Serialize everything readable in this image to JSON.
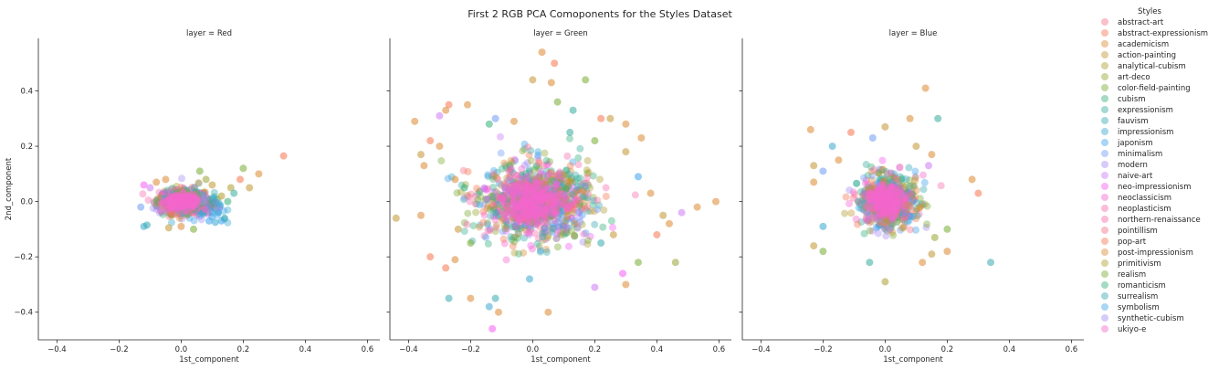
{
  "chart_data": {
    "type": "scatter",
    "title": "First 2 RGB PCA Comoponents for the Styles Dataset",
    "xlabel": "1st_component",
    "ylabel": "2nd_component",
    "xlim": [
      -0.46,
      0.64
    ],
    "ylim": [
      -0.5,
      0.59
    ],
    "x_ticks": [
      "−0.4",
      "−0.2",
      "0.0",
      "0.2",
      "0.4",
      "0.6"
    ],
    "y_ticks": [
      "−0.4",
      "−0.2",
      "0.0",
      "0.2",
      "0.4"
    ],
    "grid": false,
    "legend_title": "Styles",
    "legend_position": "right",
    "marker_opacity": 0.4,
    "categories": [
      {
        "name": "abstract-art",
        "color": "#f77189"
      },
      {
        "name": "abstract-expressionism",
        "color": "#f7754f"
      },
      {
        "name": "academicism",
        "color": "#dc8932"
      },
      {
        "name": "action-painting",
        "color": "#c39532"
      },
      {
        "name": "analytical-cubism",
        "color": "#ae9d31"
      },
      {
        "name": "art-deco",
        "color": "#97a431"
      },
      {
        "name": "color-field-painting",
        "color": "#77ab31"
      },
      {
        "name": "cubism",
        "color": "#33b07a"
      },
      {
        "name": "expressionism",
        "color": "#35ac9c"
      },
      {
        "name": "fauvism",
        "color": "#36a9b0"
      },
      {
        "name": "impressionism",
        "color": "#38a7d0"
      },
      {
        "name": "japonism",
        "color": "#3ba3ec"
      },
      {
        "name": "minimalism",
        "color": "#6e9bf4"
      },
      {
        "name": "modern",
        "color": "#a48cf4"
      },
      {
        "name": "naive-art",
        "color": "#cc7af4"
      },
      {
        "name": "neo-impressionism",
        "color": "#f45cf2"
      },
      {
        "name": "neoclassicism",
        "color": "#f565cc"
      },
      {
        "name": "neoplasticism",
        "color": "#f66bad"
      },
      {
        "name": "northern-renaissance",
        "color": "#f66bad"
      },
      {
        "name": "pointillism",
        "color": "#f77189"
      },
      {
        "name": "pop-art",
        "color": "#f7754f"
      },
      {
        "name": "post-impressionism",
        "color": "#dc8932"
      },
      {
        "name": "primitivism",
        "color": "#ae9d31"
      },
      {
        "name": "realism",
        "color": "#77ab31"
      },
      {
        "name": "romanticism",
        "color": "#33b07a"
      },
      {
        "name": "surrealism",
        "color": "#36a9b0"
      },
      {
        "name": "symbolism",
        "color": "#3ba3ec"
      },
      {
        "name": "synthetic-cubism",
        "color": "#a48cf4"
      },
      {
        "name": "ukiyo-e",
        "color": "#f565cc"
      }
    ],
    "panels": [
      {
        "title": "layer = Red",
        "core_spread": [
          0.04,
          0.022
        ],
        "points": [
          {
            "x": 0.33,
            "y": 0.165,
            "c": 1
          },
          {
            "x": 0.25,
            "y": 0.1,
            "c": 2
          },
          {
            "x": 0.2,
            "y": 0.12,
            "c": 6
          },
          {
            "x": 0.22,
            "y": 0.05,
            "c": 3
          },
          {
            "x": 0.19,
            "y": 0.08,
            "c": 1
          },
          {
            "x": 0.16,
            "y": 0.05,
            "c": 4
          },
          {
            "x": 0.12,
            "y": -0.04,
            "c": 10
          },
          {
            "x": 0.13,
            "y": -0.07,
            "c": 11
          },
          {
            "x": 0.14,
            "y": -0.06,
            "c": 9
          },
          {
            "x": 0.1,
            "y": -0.055,
            "c": 11
          },
          {
            "x": 0.11,
            "y": -0.075,
            "c": 10
          },
          {
            "x": 0.09,
            "y": -0.07,
            "c": 11
          },
          {
            "x": -0.12,
            "y": -0.09,
            "c": 10
          },
          {
            "x": -0.11,
            "y": -0.085,
            "c": 9
          },
          {
            "x": -0.13,
            "y": -0.02,
            "c": 12
          },
          {
            "x": -0.12,
            "y": 0.06,
            "c": 15
          },
          {
            "x": -0.1,
            "y": 0.05,
            "c": 14
          },
          {
            "x": 0.06,
            "y": 0.11,
            "c": 6
          },
          {
            "x": -0.05,
            "y": 0.08,
            "c": 2
          },
          {
            "x": 0.04,
            "y": -0.1,
            "c": 6
          },
          {
            "x": 0.0,
            "y": -0.09,
            "c": 2
          },
          {
            "x": -0.04,
            "y": -0.095,
            "c": 3
          },
          {
            "x": 0.08,
            "y": 0.08,
            "c": 5
          },
          {
            "x": 0.15,
            "y": 0.0,
            "c": 7
          },
          {
            "x": 0.13,
            "y": 0.02,
            "c": 4
          },
          {
            "x": -0.08,
            "y": 0.07,
            "c": 2
          },
          {
            "x": 0.17,
            "y": 0.03,
            "c": 8
          },
          {
            "x": 0.1,
            "y": 0.06,
            "c": 3
          }
        ]
      },
      {
        "title": "layer = Green",
        "core_spread": [
          0.09,
          0.07
        ],
        "points": [
          {
            "x": 0.03,
            "y": 0.54,
            "c": 2
          },
          {
            "x": 0.07,
            "y": 0.5,
            "c": 1
          },
          {
            "x": 0.17,
            "y": 0.44,
            "c": 6
          },
          {
            "x": 0.0,
            "y": 0.44,
            "c": 3
          },
          {
            "x": 0.06,
            "y": 0.43,
            "c": 2
          },
          {
            "x": -0.21,
            "y": 0.35,
            "c": 2
          },
          {
            "x": -0.27,
            "y": 0.35,
            "c": 1
          },
          {
            "x": -0.28,
            "y": 0.33,
            "c": 2
          },
          {
            "x": -0.3,
            "y": 0.31,
            "c": 14
          },
          {
            "x": -0.38,
            "y": 0.29,
            "c": 2
          },
          {
            "x": -0.06,
            "y": 0.29,
            "c": 2
          },
          {
            "x": -0.14,
            "y": 0.28,
            "c": 7
          },
          {
            "x": -0.12,
            "y": 0.3,
            "c": 12
          },
          {
            "x": 0.3,
            "y": 0.28,
            "c": 2
          },
          {
            "x": 0.22,
            "y": 0.3,
            "c": 1
          },
          {
            "x": 0.25,
            "y": 0.3,
            "c": 3
          },
          {
            "x": 0.35,
            "y": 0.23,
            "c": 2
          },
          {
            "x": -0.33,
            "y": 0.22,
            "c": 1
          },
          {
            "x": -0.3,
            "y": 0.2,
            "c": 2
          },
          {
            "x": -0.36,
            "y": 0.17,
            "c": 3
          },
          {
            "x": -0.35,
            "y": 0.13,
            "c": 2
          },
          {
            "x": -0.44,
            "y": -0.06,
            "c": 3
          },
          {
            "x": -0.36,
            "y": -0.05,
            "c": 2
          },
          {
            "x": -0.33,
            "y": -0.2,
            "c": 1
          },
          {
            "x": -0.25,
            "y": -0.21,
            "c": 2
          },
          {
            "x": -0.28,
            "y": -0.24,
            "c": 1
          },
          {
            "x": -0.27,
            "y": -0.35,
            "c": 9
          },
          {
            "x": -0.2,
            "y": -0.35,
            "c": 2
          },
          {
            "x": -0.14,
            "y": -0.38,
            "c": 10
          },
          {
            "x": -0.12,
            "y": -0.35,
            "c": 9
          },
          {
            "x": -0.13,
            "y": -0.46,
            "c": 15
          },
          {
            "x": -0.11,
            "y": -0.4,
            "c": 2
          },
          {
            "x": 0.05,
            "y": -0.4,
            "c": 2
          },
          {
            "x": -0.01,
            "y": -0.28,
            "c": 10
          },
          {
            "x": 0.2,
            "y": -0.31,
            "c": 14
          },
          {
            "x": 0.29,
            "y": -0.26,
            "c": 15
          },
          {
            "x": 0.3,
            "y": -0.3,
            "c": 2
          },
          {
            "x": 0.34,
            "y": -0.22,
            "c": 6
          },
          {
            "x": 0.46,
            "y": -0.22,
            "c": 5
          },
          {
            "x": 0.59,
            "y": 0.0,
            "c": 2
          },
          {
            "x": 0.53,
            "y": -0.02,
            "c": 2
          },
          {
            "x": 0.48,
            "y": -0.04,
            "c": 14
          },
          {
            "x": 0.44,
            "y": -0.08,
            "c": 2
          },
          {
            "x": 0.4,
            "y": -0.12,
            "c": 1
          },
          {
            "x": 0.42,
            "y": -0.05,
            "c": 3
          },
          {
            "x": 0.38,
            "y": 0.03,
            "c": 2
          },
          {
            "x": 0.34,
            "y": 0.09,
            "c": 11
          },
          {
            "x": 0.3,
            "y": 0.18,
            "c": 3
          },
          {
            "x": 0.2,
            "y": 0.22,
            "c": 6
          },
          {
            "x": 0.12,
            "y": 0.25,
            "c": 8
          },
          {
            "x": -0.25,
            "y": 0.08,
            "c": 2
          },
          {
            "x": -0.22,
            "y": 0.05,
            "c": 7
          },
          {
            "x": -0.24,
            "y": -0.1,
            "c": 3
          },
          {
            "x": -0.2,
            "y": -0.15,
            "c": 6
          },
          {
            "x": 0.22,
            "y": -0.15,
            "c": 9
          },
          {
            "x": 0.26,
            "y": -0.12,
            "c": 3
          },
          {
            "x": 0.08,
            "y": 0.36,
            "c": 6
          },
          {
            "x": 0.13,
            "y": 0.33,
            "c": 8
          }
        ]
      },
      {
        "title": "layer = Blue",
        "core_spread": [
          0.045,
          0.045
        ],
        "points": [
          {
            "x": 0.13,
            "y": 0.41,
            "c": 2
          },
          {
            "x": 0.17,
            "y": 0.3,
            "c": 8
          },
          {
            "x": -0.24,
            "y": 0.26,
            "c": 2
          },
          {
            "x": -0.11,
            "y": 0.25,
            "c": 1
          },
          {
            "x": -0.04,
            "y": 0.23,
            "c": 12
          },
          {
            "x": 0.0,
            "y": 0.27,
            "c": 3
          },
          {
            "x": 0.08,
            "y": 0.3,
            "c": 2
          },
          {
            "x": -0.23,
            "y": 0.13,
            "c": 3
          },
          {
            "x": -0.23,
            "y": 0.07,
            "c": 2
          },
          {
            "x": -0.2,
            "y": 0.11,
            "c": 12
          },
          {
            "x": -0.17,
            "y": 0.2,
            "c": 10
          },
          {
            "x": 0.28,
            "y": 0.08,
            "c": 2
          },
          {
            "x": 0.3,
            "y": 0.03,
            "c": 1
          },
          {
            "x": 0.34,
            "y": -0.22,
            "c": 9
          },
          {
            "x": 0.2,
            "y": -0.1,
            "c": 6
          },
          {
            "x": 0.2,
            "y": -0.18,
            "c": 2
          },
          {
            "x": 0.16,
            "y": -0.13,
            "c": 5
          },
          {
            "x": 0.15,
            "y": -0.19,
            "c": 3
          },
          {
            "x": -0.2,
            "y": -0.18,
            "c": 6
          },
          {
            "x": -0.23,
            "y": -0.16,
            "c": 3
          },
          {
            "x": -0.2,
            "y": -0.09,
            "c": 10
          },
          {
            "x": 0.0,
            "y": -0.29,
            "c": 4
          },
          {
            "x": -0.05,
            "y": -0.22,
            "c": 8
          },
          {
            "x": 0.12,
            "y": -0.22,
            "c": 2
          },
          {
            "x": 0.15,
            "y": 0.17,
            "c": 2
          },
          {
            "x": 0.14,
            "y": 0.13,
            "c": 14
          },
          {
            "x": -0.15,
            "y": 0.15,
            "c": 2
          },
          {
            "x": 0.1,
            "y": 0.2,
            "c": 3
          }
        ]
      }
    ]
  }
}
